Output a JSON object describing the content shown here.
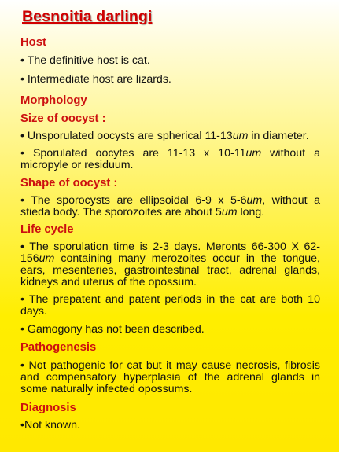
{
  "title": "Besnoitia darlingi",
  "host": {
    "heading": "Host",
    "items": [
      "• The definitive host is cat.",
      "• Intermediate host are lizards."
    ]
  },
  "morphology": {
    "heading": "Morphology",
    "size_heading": "Size of oocyst :",
    "size_items": [
      {
        "before": "• Unsporulated oocysts are spherical 11-13",
        "unit": "um",
        "after": " in diameter."
      },
      {
        "before": "• Sporulated oocytes are 11-13 x 10-11",
        "unit": "um",
        "after": " without a micropyle or residuum."
      }
    ],
    "shape_heading": "Shape of oocyst :",
    "shape_item": {
      "a": "• The sporocysts are ellipsoidal 6-9 x 5-6",
      "u1": "um",
      "b": ", without a stieda body. The sporozoites are about 5",
      "u2": "um",
      "c": " long."
    }
  },
  "life_cycle": {
    "heading": "Life cycle",
    "item1": {
      "before": "• The sporulation time is 2-3 days. Meronts 66-300 X 62-156",
      "unit": "um",
      "after": " containing many merozoites occur in the tongue, ears, mesenteries, gastrointestinal tract, adrenal glands, kidneys and uterus of the opossum."
    },
    "item2": "• The prepatent and patent periods in the cat are both 10 days.",
    "item3": "• Gamogony has not been described."
  },
  "pathogenesis": {
    "heading": "Pathogenesis",
    "item": "• Not pathogenic for cat but it may cause necrosis, fibrosis and compensatory hyperplasia of the adrenal glands in some naturally infected opossums."
  },
  "diagnosis": {
    "heading": "Diagnosis",
    "item": "•Not known."
  }
}
